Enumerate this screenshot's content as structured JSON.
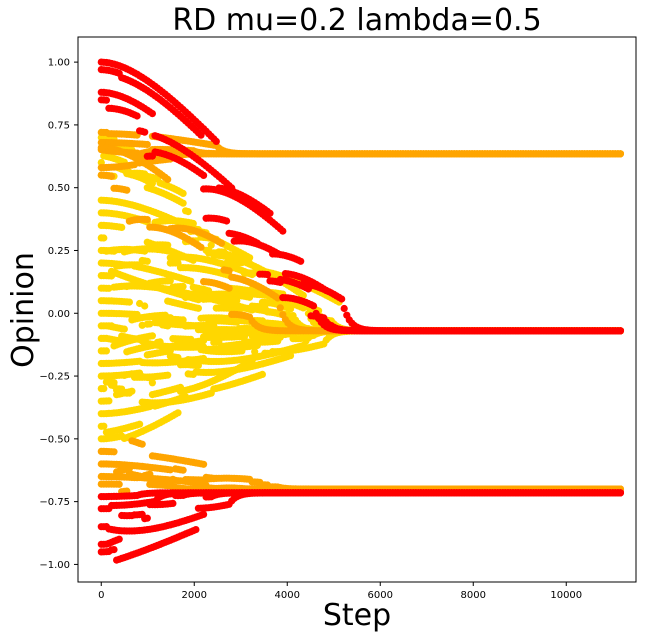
{
  "chart_data": {
    "type": "scatter",
    "title": "RD mu=0.2 lambda=0.5",
    "xlabel": "Step",
    "ylabel": "Opinion",
    "xlim": [
      -500,
      11500
    ],
    "ylim": [
      -1.07,
      1.1
    ],
    "x_ticks": [
      0,
      2000,
      4000,
      6000,
      8000,
      10000
    ],
    "x_tick_labels": [
      "0",
      "2000",
      "4000",
      "6000",
      "8000",
      "10000"
    ],
    "y_ticks": [
      1.0,
      0.75,
      0.5,
      0.25,
      0.0,
      -0.25,
      -0.5,
      -0.75,
      -1.0
    ],
    "y_tick_labels": [
      "1.00",
      "0.75",
      "0.50",
      "0.25",
      "0.00",
      "−0.25",
      "−0.50",
      "−0.75",
      "−1.00"
    ],
    "grid": false,
    "legend": "none",
    "colors": {
      "extreme": "#ff0000",
      "moderate": "#ffa500",
      "central": "#ffd700"
    },
    "series": [
      {
        "color_group": "central",
        "trajectories": [
          {
            "start": 0.45,
            "end": -0.07,
            "t_conv": 5000
          },
          {
            "start": 0.4,
            "end": -0.07,
            "t_conv": 4700
          },
          {
            "start": 0.35,
            "end": -0.07,
            "t_conv": 4500
          },
          {
            "start": 0.3,
            "end": -0.07,
            "t_conv": 4300
          },
          {
            "start": 0.25,
            "end": -0.07,
            "t_conv": 4100
          },
          {
            "start": 0.2,
            "end": -0.07,
            "t_conv": 3900
          },
          {
            "start": 0.15,
            "end": -0.07,
            "t_conv": 3700
          },
          {
            "start": 0.1,
            "end": -0.07,
            "t_conv": 3500
          },
          {
            "start": 0.05,
            "end": -0.07,
            "t_conv": 3400
          },
          {
            "start": 0.0,
            "end": -0.07,
            "t_conv": 3300
          },
          {
            "start": -0.05,
            "end": -0.07,
            "t_conv": 3300
          },
          {
            "start": -0.1,
            "end": -0.07,
            "t_conv": 3400
          },
          {
            "start": -0.15,
            "end": -0.07,
            "t_conv": 3600
          },
          {
            "start": -0.2,
            "end": -0.07,
            "t_conv": 3800
          },
          {
            "start": -0.25,
            "end": -0.07,
            "t_conv": 4000
          },
          {
            "start": -0.3,
            "end": -0.07,
            "t_conv": 4200
          },
          {
            "start": -0.35,
            "end": -0.07,
            "t_conv": 4400
          },
          {
            "start": -0.4,
            "end": -0.07,
            "t_conv": 4600
          },
          {
            "start": -0.45,
            "end": -0.07,
            "t_conv": 4800
          },
          {
            "start": 0.55,
            "end": -0.07,
            "t_conv": 5200
          },
          {
            "start": 0.6,
            "end": -0.07,
            "t_conv": 4400
          },
          {
            "start": 0.7,
            "end": -0.07,
            "t_conv": 4100
          },
          {
            "start": -0.5,
            "end": -0.07,
            "t_conv": 3300
          }
        ]
      },
      {
        "color_group": "moderate",
        "trajectories": [
          {
            "start": 0.72,
            "end": 0.635,
            "t_conv": 2500
          },
          {
            "start": 0.68,
            "end": 0.635,
            "t_conv": 2000
          },
          {
            "start": 0.62,
            "end": 0.635,
            "t_conv": 1500
          },
          {
            "start": 0.58,
            "end": 0.635,
            "t_conv": 1000
          },
          {
            "start": 0.66,
            "end": -0.07,
            "t_conv": 3800
          },
          {
            "start": 0.55,
            "end": -0.07,
            "t_conv": 3200
          },
          {
            "start": -0.55,
            "end": -0.7,
            "t_conv": 3800
          },
          {
            "start": -0.6,
            "end": -0.7,
            "t_conv": 3000
          },
          {
            "start": -0.65,
            "end": -0.7,
            "t_conv": 2400
          },
          {
            "start": -0.68,
            "end": -0.7,
            "t_conv": 1500
          }
        ]
      },
      {
        "color_group": "extreme",
        "trajectories": [
          {
            "start": 1.0,
            "end": -0.07,
            "t_conv": 5200
          },
          {
            "start": 0.97,
            "end": -0.07,
            "t_conv": 5000
          },
          {
            "start": 0.88,
            "end": -0.07,
            "t_conv": 4800
          },
          {
            "start": 0.85,
            "end": -0.07,
            "t_conv": 4600
          },
          {
            "start": -0.95,
            "end": -0.715,
            "t_conv": 2800
          },
          {
            "start": -0.92,
            "end": -0.715,
            "t_conv": 2400
          },
          {
            "start": -0.85,
            "end": -0.715,
            "t_conv": 1800
          },
          {
            "start": -0.78,
            "end": -0.715,
            "t_conv": 1200
          },
          {
            "start": -0.73,
            "end": -0.715,
            "t_conv": 800
          }
        ]
      }
    ],
    "clusters": [
      0.635,
      -0.07,
      -0.7,
      -0.715
    ],
    "x_max": 11200
  }
}
